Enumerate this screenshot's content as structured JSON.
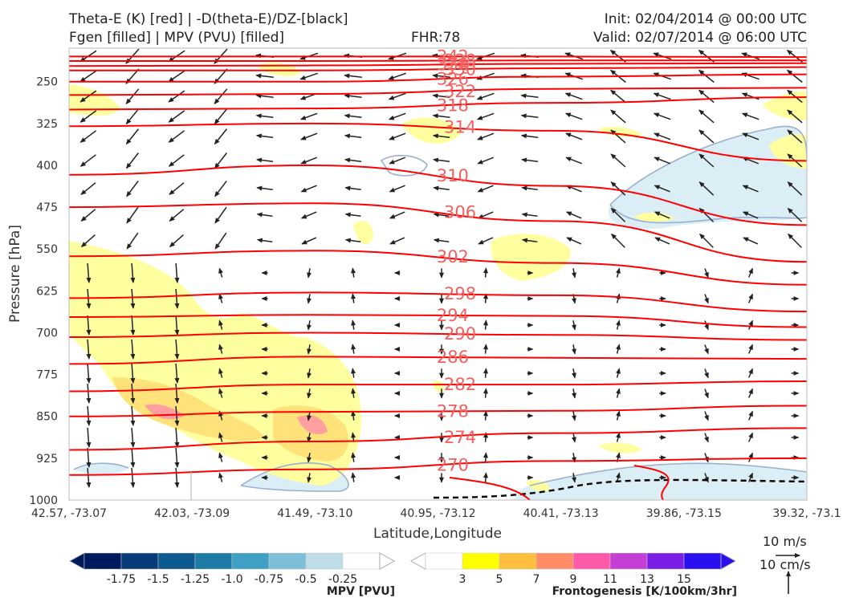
{
  "header": {
    "title_line1": "Theta-E (K) [red] | -D(theta-E)/DZ-[black]",
    "title_line2": "Fgen [filled] | MPV (PVU) [filled]",
    "fhr": "FHR:78",
    "init": "Init: 02/04/2014 @ 00:00 UTC",
    "valid": "Valid: 02/07/2014 @ 06:00 UTC"
  },
  "colors": {
    "theta_e": "#ff0000",
    "theta_e_label": "#f26060",
    "fgen_3": "#ffffa0",
    "fgen_5": "#ffe27a",
    "fgen_7": "#ff9fa0",
    "mpv_neg": "#dceef5"
  },
  "chart_data": {
    "type": "cross-section",
    "xlabel": "Latitude,Longitude",
    "ylabel": "Pressure [hPa]",
    "x_ticks": [
      "42.57, -73.07",
      "42.03, -73.09",
      "41.49, -73.10",
      "40.95, -73.12",
      "40.41, -73.13",
      "39.86, -73.15",
      "39.32, -73.1"
    ],
    "y_ticks": [
      250,
      325,
      400,
      475,
      550,
      625,
      700,
      775,
      850,
      925,
      1000
    ],
    "ylim": [
      1000,
      190
    ],
    "y_scale": "linear, inverted",
    "theta_e_contours": [
      {
        "label": "342",
        "p": [
          205,
          205,
          205,
          206
        ]
      },
      {
        "label": "338",
        "p": [
          213,
          213,
          212,
          212
        ]
      },
      {
        "label": "334",
        "p": [
          222,
          221,
          218,
          217
        ]
      },
      {
        "label": "330",
        "p": [
          230,
          230,
          226,
          224
        ]
      },
      {
        "label": "326",
        "p": [
          250,
          250,
          241,
          237
        ]
      },
      {
        "label": "322",
        "p": [
          274,
          272,
          263,
          261
        ]
      },
      {
        "label": "318",
        "p": [
          300,
          298,
          288,
          278
        ]
      },
      {
        "label": "314",
        "p": [
          330,
          325,
          338,
          392
        ]
      },
      {
        "label": "310",
        "p": [
          417,
          400,
          437,
          507
        ]
      },
      {
        "label": "306",
        "p": [
          475,
          468,
          500,
          573
        ]
      },
      {
        "label": "302",
        "p": [
          563,
          553,
          575,
          614
        ]
      },
      {
        "label": "298",
        "p": [
          638,
          628,
          633,
          662
        ]
      },
      {
        "label": "294",
        "p": [
          672,
          668,
          670,
          690
        ]
      },
      {
        "label": "290",
        "p": [
          708,
          700,
          704,
          713
        ]
      },
      {
        "label": "286",
        "p": [
          756,
          743,
          745,
          747
        ]
      },
      {
        "label": "282",
        "p": [
          805,
          793,
          793,
          787
        ]
      },
      {
        "label": "278",
        "p": [
          850,
          842,
          840,
          831
        ]
      },
      {
        "label": "274",
        "p": [
          910,
          895,
          880,
          871
        ]
      },
      {
        "label": "270",
        "p": [
          955,
          945,
          930,
          925
        ]
      }
    ],
    "fgen_levels": [
      "3",
      "5",
      "7",
      "9",
      "11",
      "13",
      "15"
    ],
    "fgen_colors": [
      "#ffff00",
      "#ffbe3c",
      "#ff8c66",
      "#ff5aa8",
      "#c43fd6",
      "#7a1fe6",
      "#2a10ee"
    ],
    "mpv_levels": [
      "-1.75",
      "-1.5",
      "-1.25",
      "-1.0",
      "-0.75",
      "-0.5",
      "-0.25"
    ],
    "mpv_colors": [
      "#001a5e",
      "#083a7a",
      "#0c5a8f",
      "#1d7ba6",
      "#3fa0c4",
      "#7dbfd8",
      "#bfdde8",
      "#ffffff"
    ],
    "fgen_title": "Frontogenesis [K/100km/3hr]",
    "mpv_title": "MPV [PVU]",
    "vector_key": {
      "u_label": "10 m/s",
      "w_label": "10 cm/s"
    }
  }
}
